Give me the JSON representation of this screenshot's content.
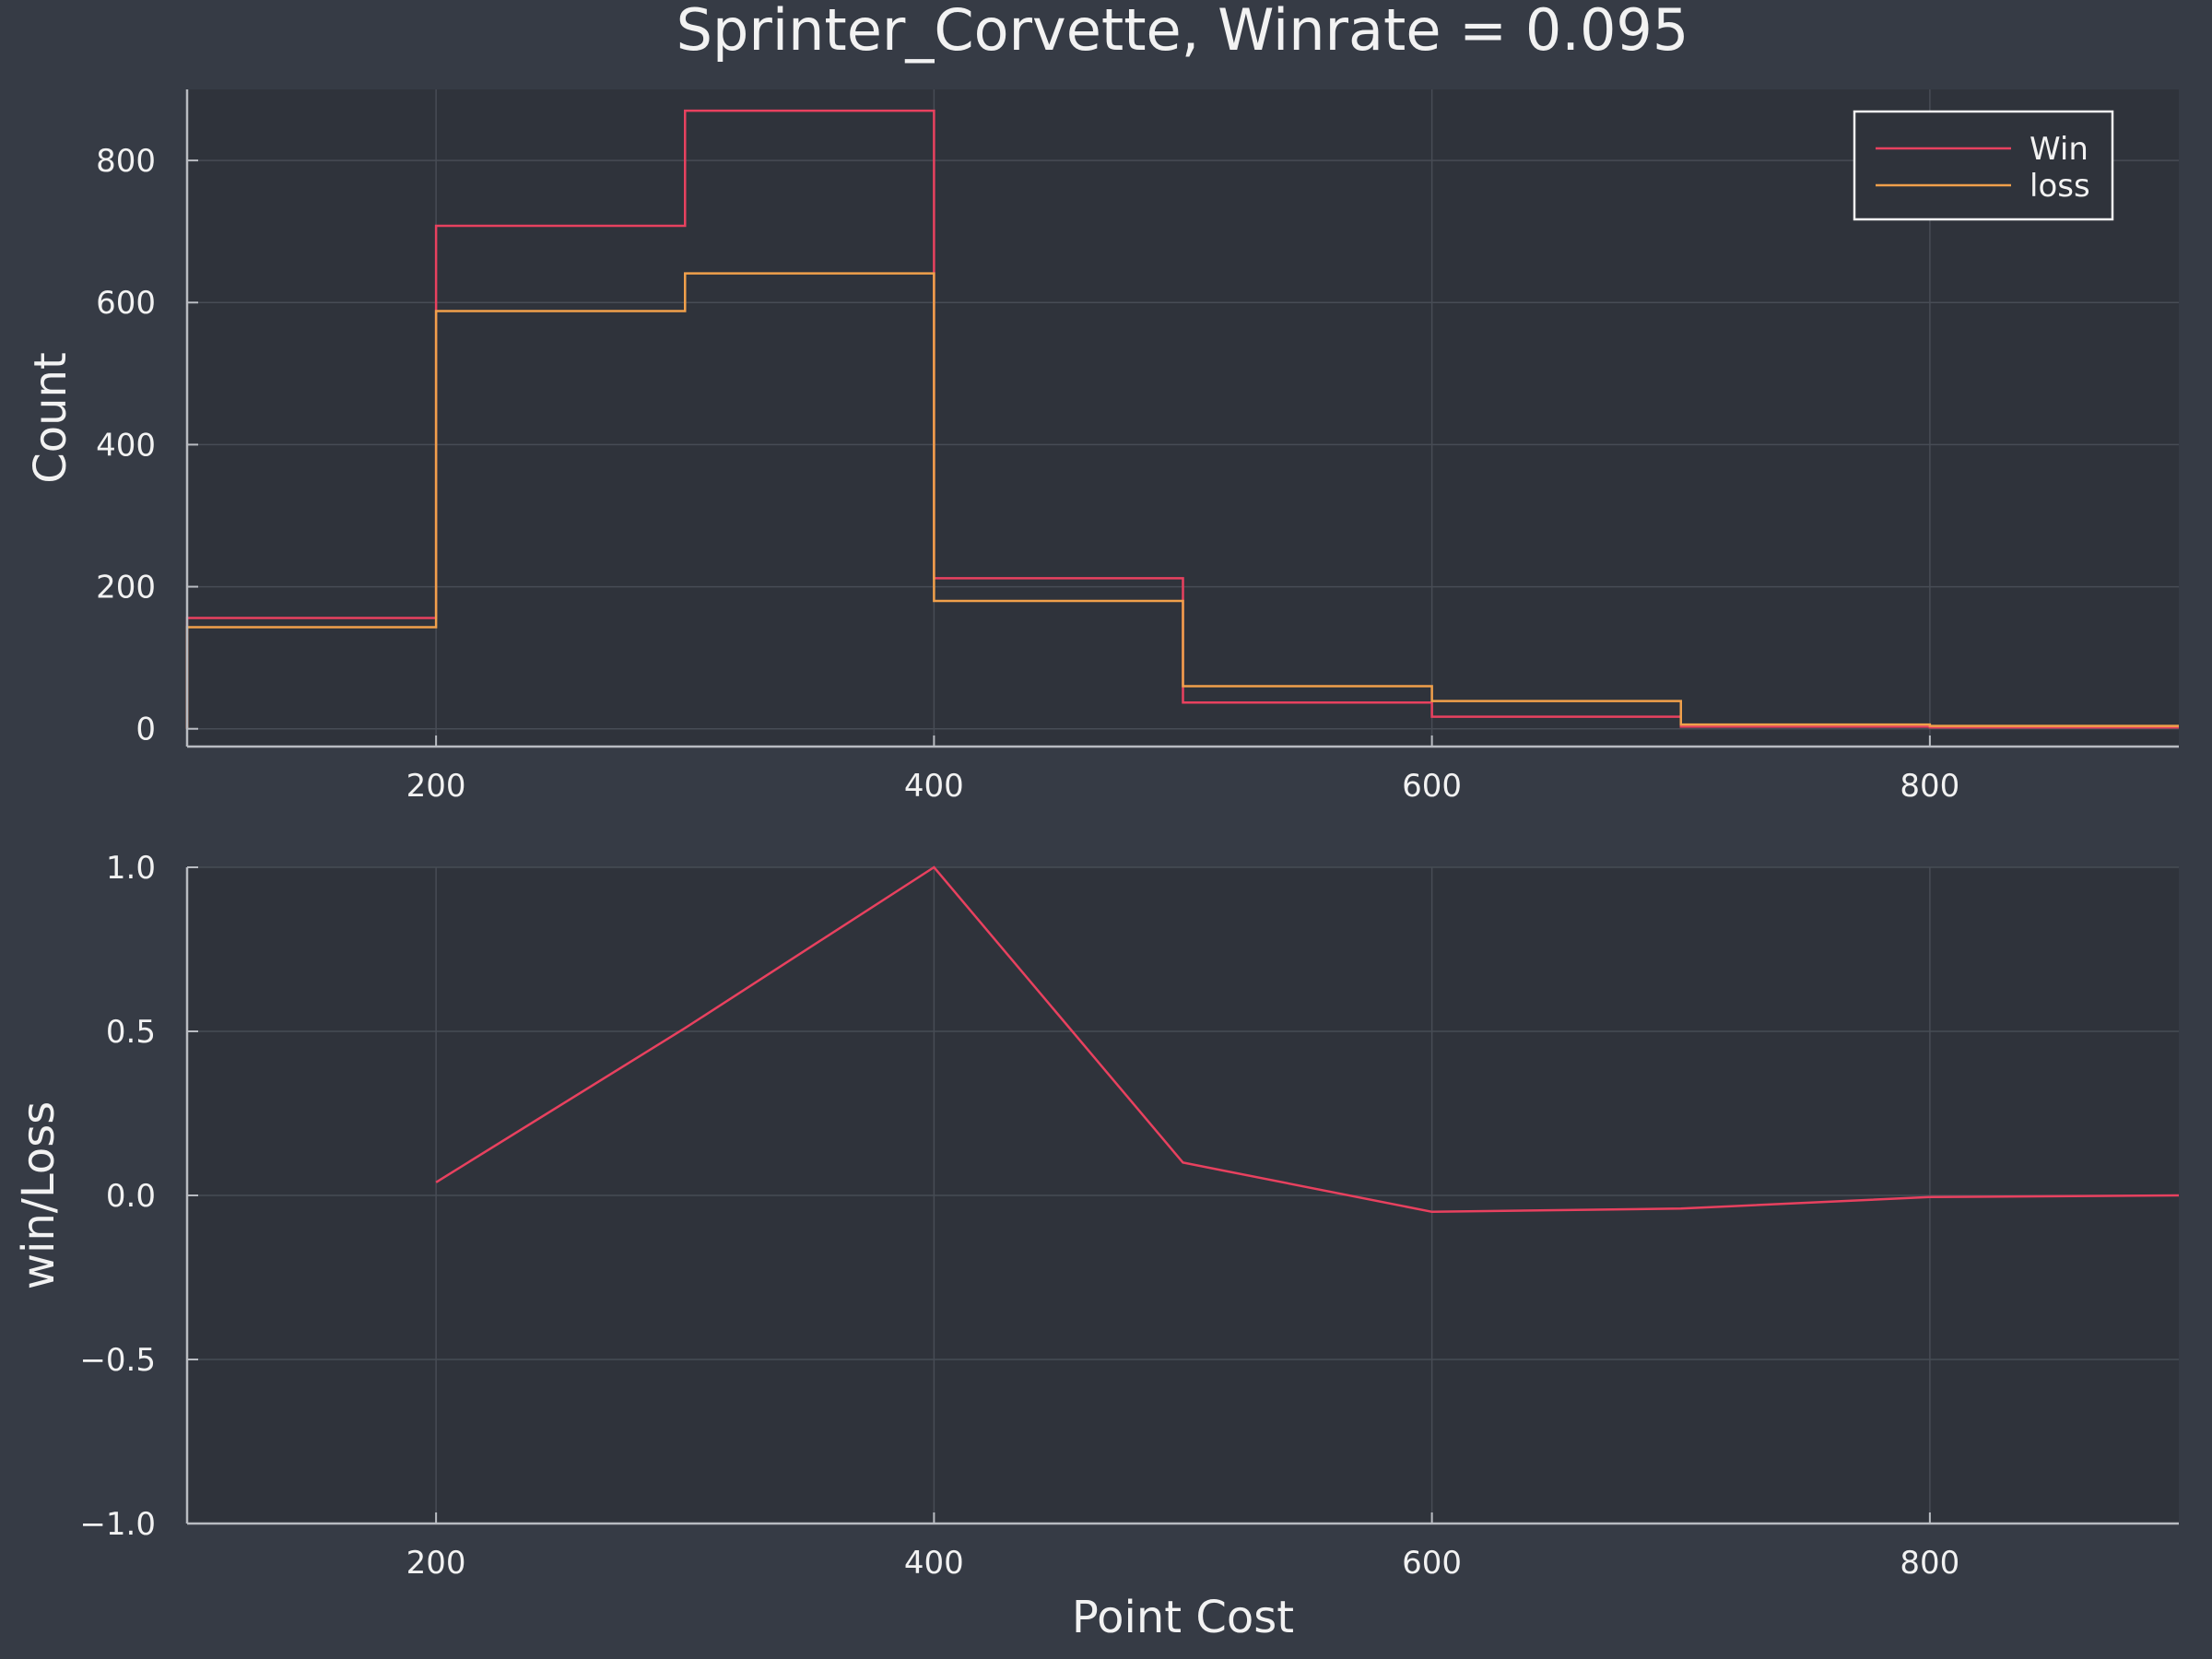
{
  "chart_data": [
    {
      "type": "step",
      "title": "Sprinter_Corvette, Winrate = 0.095",
      "xlabel": "",
      "ylabel": "Count",
      "xlim": [
        100,
        900
      ],
      "ylim": [
        -25,
        900
      ],
      "xticks": [
        200,
        400,
        600,
        800
      ],
      "yticks": [
        0,
        200,
        400,
        600,
        800
      ],
      "grid": true,
      "legend_position": "top-right",
      "bin_edges": [
        100,
        200,
        300,
        400,
        500,
        600,
        700,
        800,
        900
      ],
      "series": [
        {
          "name": "Win",
          "color": "#e8415f",
          "values": [
            156,
            708,
            870,
            212,
            37,
            17,
            3,
            2
          ]
        },
        {
          "name": "loss",
          "color": "#f0a04b",
          "values": [
            143,
            588,
            641,
            180,
            60,
            39,
            6,
            4
          ]
        }
      ]
    },
    {
      "type": "line",
      "xlabel": "Point Cost",
      "ylabel": "win/Loss",
      "xlim": [
        100,
        900
      ],
      "ylim": [
        -1.0,
        1.0
      ],
      "xticks": [
        200,
        400,
        600,
        800
      ],
      "yticks": [
        -1.0,
        -0.5,
        0.0,
        0.5,
        1.0
      ],
      "ytick_labels": [
        "−1.0",
        "−0.5",
        "0.0",
        "0.5",
        "1.0"
      ],
      "grid": true,
      "series": [
        {
          "color": "#e8415f",
          "x": [
            200,
            300,
            400,
            500,
            600,
            700,
            800,
            900
          ],
          "y": [
            0.04,
            0.51,
            1.0,
            0.1,
            -0.05,
            -0.04,
            -0.005,
            0.0
          ]
        }
      ]
    }
  ]
}
